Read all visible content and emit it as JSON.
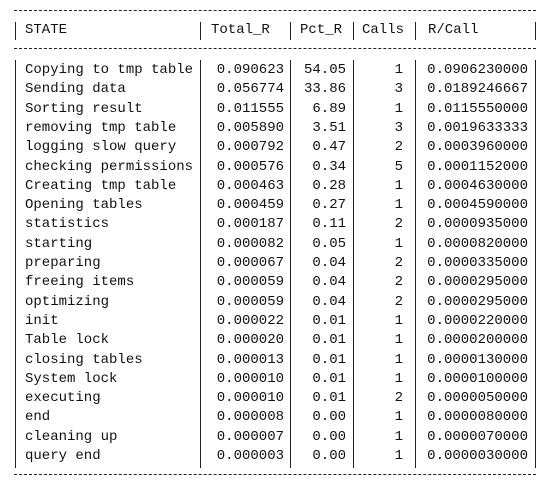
{
  "table": {
    "header": [
      "STATE",
      "Total_R",
      "Pct_R",
      "Calls",
      "R/Call"
    ],
    "rows": [
      [
        "Copying to tmp table",
        "0.090623",
        "54.05",
        "1",
        "0.0906230000"
      ],
      [
        "Sending data",
        "0.056774",
        "33.86",
        "3",
        "0.0189246667"
      ],
      [
        "Sorting result",
        "0.011555",
        "6.89",
        "1",
        "0.0115550000"
      ],
      [
        "removing tmp table",
        "0.005890",
        "3.51",
        "3",
        "0.0019633333"
      ],
      [
        "logging slow query",
        "0.000792",
        "0.47",
        "2",
        "0.0003960000"
      ],
      [
        "checking permissions",
        "0.000576",
        "0.34",
        "5",
        "0.0001152000"
      ],
      [
        "Creating tmp table",
        "0.000463",
        "0.28",
        "1",
        "0.0004630000"
      ],
      [
        "Opening tables",
        "0.000459",
        "0.27",
        "1",
        "0.0004590000"
      ],
      [
        "statistics",
        "0.000187",
        "0.11",
        "2",
        "0.0000935000"
      ],
      [
        "starting",
        "0.000082",
        "0.05",
        "1",
        "0.0000820000"
      ],
      [
        "preparing",
        "0.000067",
        "0.04",
        "2",
        "0.0000335000"
      ],
      [
        "freeing items",
        "0.000059",
        "0.04",
        "2",
        "0.0000295000"
      ],
      [
        "optimizing",
        "0.000059",
        "0.04",
        "2",
        "0.0000295000"
      ],
      [
        "init",
        "0.000022",
        "0.01",
        "1",
        "0.0000220000"
      ],
      [
        "Table lock",
        "0.000020",
        "0.01",
        "1",
        "0.0000200000"
      ],
      [
        "closing tables",
        "0.000013",
        "0.01",
        "1",
        "0.0000130000"
      ],
      [
        "System lock",
        "0.000010",
        "0.01",
        "1",
        "0.0000100000"
      ],
      [
        "executing",
        "0.000010",
        "0.01",
        "2",
        "0.0000050000"
      ],
      [
        "end",
        "0.000008",
        "0.00",
        "1",
        "0.0000080000"
      ],
      [
        "cleaning up",
        "0.000007",
        "0.00",
        "1",
        "0.0000070000"
      ],
      [
        "query end",
        "0.000003",
        "0.00",
        "1",
        "0.0000030000"
      ]
    ]
  }
}
